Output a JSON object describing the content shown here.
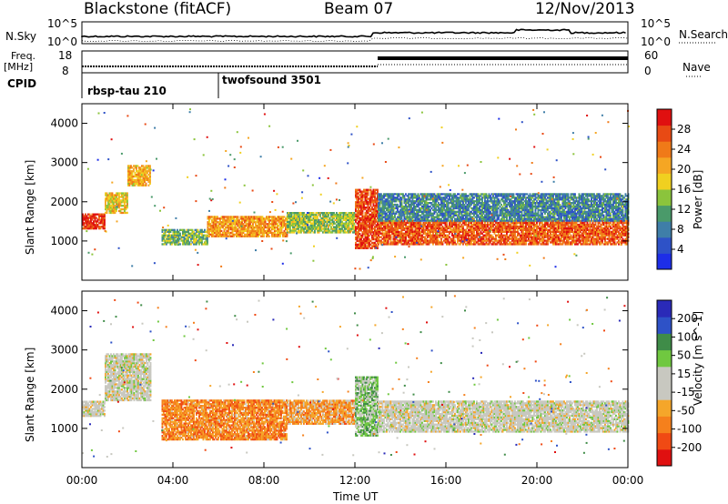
{
  "header": {
    "station": "Blackstone (fitACF)",
    "beam": "Beam 07",
    "date": "12/Nov/2013"
  },
  "side_labels": {
    "nsky": "N.Sky",
    "freq": "Freq.",
    "mhz": "[MHz]",
    "cpid": "CPID",
    "nsearch": "N.Search",
    "nave": "Nave"
  },
  "cpid_labels": [
    {
      "name": "rbsp-tau 210",
      "start_hour": 0
    },
    {
      "name": "twofsound 3501",
      "start_hour": 6
    }
  ],
  "noise_axis": {
    "left_ticks": [
      "10^5",
      "10^0"
    ],
    "right_ticks": [
      "10^5",
      "10^0"
    ]
  },
  "freq_axis": {
    "left_ticks": [
      "18",
      "8"
    ],
    "right_ticks": [
      "60",
      "0"
    ]
  },
  "colors": {
    "power_scale": [
      "#1d2ee8",
      "#2e52c7",
      "#3f7ea8",
      "#4a9a6a",
      "#8bc43c",
      "#f0d020",
      "#f5a623",
      "#f07a18",
      "#e84a14",
      "#e01010"
    ],
    "velocity_scale": [
      "#e01010",
      "#f04a14",
      "#f5801c",
      "#f5a62a",
      "#c8c8c0",
      "#c8c8c0",
      "#70c840",
      "#3f8c48",
      "#2e52c7",
      "#2a2ab8"
    ]
  },
  "chart_data": [
    {
      "type": "heatmap",
      "title": "Power",
      "xlabel": "",
      "ylabel": "Slant Range [km]",
      "x_range_hours": [
        0,
        24
      ],
      "ylim": [
        0,
        4500
      ],
      "y_ticks": [
        "1000",
        "2000",
        "3000",
        "4000"
      ],
      "colorbar": {
        "label": "Power [dB]",
        "ticks": [
          "4",
          "8",
          "12",
          "16",
          "20",
          "24",
          "28"
        ]
      },
      "regions": [
        {
          "t_start": 0.0,
          "t_end": 1.0,
          "r_low": 1300,
          "r_high": 1700,
          "level": 0.95
        },
        {
          "t_start": 1.0,
          "t_end": 2.0,
          "r_low": 1700,
          "r_high": 2200,
          "level": 0.6
        },
        {
          "t_start": 2.0,
          "t_end": 3.0,
          "r_low": 2400,
          "r_high": 2900,
          "level": 0.65
        },
        {
          "t_start": 3.5,
          "t_end": 5.5,
          "r_low": 900,
          "r_high": 1300,
          "level": 0.4
        },
        {
          "t_start": 5.5,
          "t_end": 9.0,
          "r_low": 1100,
          "r_high": 1600,
          "level": 0.7
        },
        {
          "t_start": 9.0,
          "t_end": 12.0,
          "r_low": 1200,
          "r_high": 1700,
          "level": 0.45
        },
        {
          "t_start": 12.0,
          "t_end": 13.0,
          "r_low": 800,
          "r_high": 2300,
          "level": 0.9
        },
        {
          "t_start": 13.0,
          "t_end": 24.0,
          "r_low": 900,
          "r_high": 1500,
          "level": 0.85
        },
        {
          "t_start": 13.0,
          "t_end": 24.0,
          "r_low": 1500,
          "r_high": 2200,
          "level": 0.25
        }
      ]
    },
    {
      "type": "heatmap",
      "title": "Velocity",
      "xlabel": "Time UT",
      "ylabel": "Slant Range [km]",
      "x_range_hours": [
        0,
        24
      ],
      "x_ticks": [
        "00:00",
        "04:00",
        "08:00",
        "12:00",
        "16:00",
        "20:00",
        "00:00"
      ],
      "ylim": [
        0,
        4500
      ],
      "y_ticks": [
        "1000",
        "2000",
        "3000",
        "4000"
      ],
      "colorbar": {
        "label": "Velocity [m s^-1]",
        "ticks": [
          "-200",
          "-100",
          "-50",
          "-15",
          "15",
          "50",
          "100",
          "200"
        ]
      },
      "regions": [
        {
          "t_start": 0.0,
          "t_end": 1.0,
          "r_low": 1300,
          "r_high": 1700,
          "level": 0.5
        },
        {
          "t_start": 1.0,
          "t_end": 3.0,
          "r_low": 1700,
          "r_high": 2900,
          "level": 0.5
        },
        {
          "t_start": 3.5,
          "t_end": 9.0,
          "r_low": 700,
          "r_high": 1700,
          "level": 0.25
        },
        {
          "t_start": 9.0,
          "t_end": 12.0,
          "r_low": 1100,
          "r_high": 1700,
          "level": 0.3
        },
        {
          "t_start": 12.0,
          "t_end": 13.0,
          "r_low": 800,
          "r_high": 2300,
          "level": 0.65
        },
        {
          "t_start": 13.0,
          "t_end": 24.0,
          "r_low": 900,
          "r_high": 1700,
          "level": 0.5
        }
      ]
    }
  ]
}
